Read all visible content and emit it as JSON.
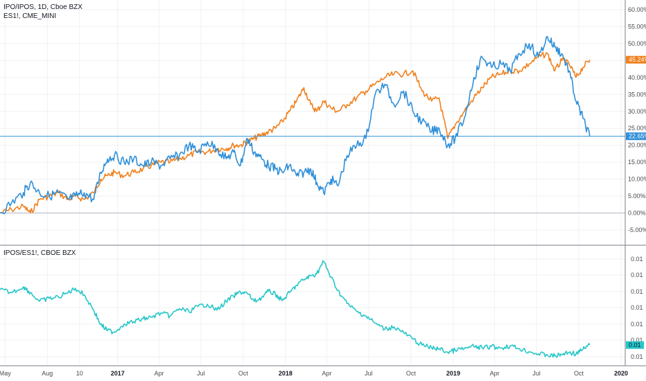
{
  "upper_pane": {
    "legend_main": "IPO/IPOS, 1D, Cboe BZX",
    "legend_compare": "ES1!, CME_MINI",
    "y_ticks": [
      "60.00%",
      "55.00%",
      "50.00%",
      "45.00%",
      "40.00%",
      "35.00%",
      "30.00%",
      "25.00%",
      "20.00%",
      "15.00%",
      "10.00%",
      "5.00%",
      "0.00%",
      "-5.00%"
    ],
    "last_es_label": "45.24%",
    "last_ipo_label": "22.65%"
  },
  "lower_pane": {
    "legend": "IPOS/ES1!, CBOE BZX",
    "y_ticks": [
      "0.01",
      "0.01",
      "0.01",
      "0.01",
      "0.01",
      "0.01",
      "0.01"
    ],
    "last_label": "0.01"
  },
  "x_axis": {
    "ticks": [
      {
        "label": "May",
        "bold": false
      },
      {
        "label": "Aug",
        "bold": false
      },
      {
        "label": "10",
        "bold": false
      },
      {
        "label": "2017",
        "bold": true
      },
      {
        "label": "Apr",
        "bold": false
      },
      {
        "label": "Jul",
        "bold": false
      },
      {
        "label": "Oct",
        "bold": false
      },
      {
        "label": "2018",
        "bold": true
      },
      {
        "label": "Apr",
        "bold": false
      },
      {
        "label": "Jul",
        "bold": false
      },
      {
        "label": "Oct",
        "bold": false
      },
      {
        "label": "2019",
        "bold": true
      },
      {
        "label": "Apr",
        "bold": false
      },
      {
        "label": "Jul",
        "bold": false
      },
      {
        "label": "Oct",
        "bold": false
      },
      {
        "label": "2020",
        "bold": true
      }
    ]
  },
  "colors": {
    "ipo": "#2f8fd8",
    "es": "#f0801d",
    "ratio": "#26c6c8",
    "grid": "#eef1f4",
    "zero_line": "#b2b5be",
    "background": "#ffffff"
  },
  "chart_data": [
    {
      "type": "line",
      "title": "IPO/IPOS, 1D, Cboe BZX",
      "y_unit": "%",
      "ylim": [
        -8,
        62
      ],
      "x_format": "YYYY-MM-DD",
      "xlim": [
        "2016-04-20",
        "2020-01-10"
      ],
      "grid": true,
      "series": [
        {
          "name": "IPO/IPOS, 1D, Cboe BZX",
          "color": "#2f8fd8",
          "x": [
            "2016-04-20",
            "2016-05-15",
            "2016-06-10",
            "2016-06-25",
            "2016-07-15",
            "2016-08-05",
            "2016-08-25",
            "2016-09-15",
            "2016-10-01",
            "2016-10-20",
            "2016-11-10",
            "2016-11-25",
            "2016-12-10",
            "2016-12-25",
            "2017-01-15",
            "2017-02-05",
            "2017-02-25",
            "2017-03-15",
            "2017-04-05",
            "2017-04-25",
            "2017-05-15",
            "2017-06-05",
            "2017-06-25",
            "2017-07-15",
            "2017-08-05",
            "2017-08-25",
            "2017-09-10",
            "2017-09-25",
            "2017-10-10",
            "2017-10-25",
            "2017-11-10",
            "2017-11-25",
            "2017-12-10",
            "2017-12-25",
            "2018-01-10",
            "2018-01-25",
            "2018-02-10",
            "2018-02-25",
            "2018-03-10",
            "2018-03-25",
            "2018-04-10",
            "2018-04-25",
            "2018-05-15",
            "2018-06-05",
            "2018-06-25",
            "2018-07-15",
            "2018-08-05",
            "2018-08-25",
            "2018-09-15",
            "2018-10-05",
            "2018-10-25",
            "2018-11-15",
            "2018-12-01",
            "2018-12-20",
            "2019-01-05",
            "2019-01-25",
            "2019-02-15",
            "2019-03-05",
            "2019-03-25",
            "2019-04-15",
            "2019-05-05",
            "2019-05-25",
            "2019-06-15",
            "2019-07-05",
            "2019-07-25",
            "2019-08-10",
            "2019-08-25",
            "2019-09-10",
            "2019-09-25",
            "2019-10-10",
            "2019-10-25"
          ],
          "y": [
            0,
            3,
            6,
            9,
            6,
            5,
            6,
            4,
            5,
            6,
            4,
            12,
            16,
            17,
            15,
            16,
            14,
            15,
            14,
            16,
            17,
            20,
            18,
            21,
            19,
            16,
            18,
            14,
            22,
            18,
            16,
            14,
            13,
            12,
            14,
            11,
            12,
            13,
            9,
            6,
            10,
            8,
            17,
            20,
            22,
            35,
            38,
            32,
            36,
            30,
            27,
            24,
            25,
            20,
            22,
            28,
            40,
            46,
            43,
            44,
            42,
            47,
            50,
            46,
            52,
            49,
            47,
            42,
            33,
            28,
            22.65
          ]
        },
        {
          "name": "ES1!, CME_MINI",
          "color": "#f0801d",
          "x": [
            "2016-04-20",
            "2016-05-15",
            "2016-06-10",
            "2016-06-25",
            "2016-07-15",
            "2016-08-05",
            "2016-08-25",
            "2016-09-15",
            "2016-10-01",
            "2016-10-20",
            "2016-11-10",
            "2016-11-25",
            "2016-12-10",
            "2016-12-25",
            "2017-01-15",
            "2017-02-05",
            "2017-02-25",
            "2017-03-15",
            "2017-04-05",
            "2017-04-25",
            "2017-05-15",
            "2017-06-05",
            "2017-06-25",
            "2017-07-15",
            "2017-08-05",
            "2017-08-25",
            "2017-09-10",
            "2017-09-25",
            "2017-10-10",
            "2017-10-25",
            "2017-11-10",
            "2017-11-25",
            "2017-12-10",
            "2017-12-25",
            "2018-01-10",
            "2018-01-25",
            "2018-02-10",
            "2018-02-25",
            "2018-03-10",
            "2018-03-25",
            "2018-04-10",
            "2018-04-25",
            "2018-05-15",
            "2018-06-05",
            "2018-06-25",
            "2018-07-15",
            "2018-08-05",
            "2018-08-25",
            "2018-09-15",
            "2018-10-05",
            "2018-10-25",
            "2018-11-15",
            "2018-12-01",
            "2018-12-20",
            "2019-01-05",
            "2019-01-25",
            "2019-02-15",
            "2019-03-05",
            "2019-03-25",
            "2019-04-15",
            "2019-05-05",
            "2019-05-25",
            "2019-06-15",
            "2019-07-05",
            "2019-07-25",
            "2019-08-10",
            "2019-08-25",
            "2019-09-10",
            "2019-09-25",
            "2019-10-10",
            "2019-10-25"
          ],
          "y": [
            0,
            1,
            2,
            0,
            4,
            5,
            6,
            4,
            5,
            4,
            6,
            10,
            11,
            12,
            11,
            12,
            13,
            14,
            15,
            15,
            16,
            17,
            18,
            18,
            19,
            19,
            20,
            20,
            21,
            22,
            23,
            24,
            25,
            27,
            30,
            33,
            37,
            32,
            30,
            33,
            31,
            30,
            32,
            34,
            36,
            38,
            40,
            41,
            41,
            42,
            36,
            33,
            34,
            22,
            26,
            30,
            34,
            37,
            40,
            41,
            42,
            42,
            44,
            46,
            47,
            42,
            45,
            44,
            40,
            43,
            45.24
          ]
        }
      ]
    },
    {
      "type": "line",
      "title": "IPOS/ES1!, CBOE BZX",
      "ytick_label": "0.01",
      "x_format": "YYYY-MM-DD",
      "xlim": [
        "2016-04-20",
        "2020-01-10"
      ],
      "grid": true,
      "series": [
        {
          "name": "IPOS/ES1!, CBOE BZX",
          "color": "#26c6c8",
          "x": [
            "2016-04-20",
            "2016-05-15",
            "2016-06-10",
            "2016-06-25",
            "2016-07-15",
            "2016-08-05",
            "2016-08-25",
            "2016-09-15",
            "2016-10-01",
            "2016-10-20",
            "2016-11-10",
            "2016-11-25",
            "2016-12-10",
            "2016-12-25",
            "2017-01-15",
            "2017-02-05",
            "2017-02-25",
            "2017-03-15",
            "2017-04-05",
            "2017-04-25",
            "2017-05-15",
            "2017-06-05",
            "2017-06-25",
            "2017-07-15",
            "2017-08-05",
            "2017-08-25",
            "2017-09-10",
            "2017-09-25",
            "2017-10-10",
            "2017-10-25",
            "2017-11-10",
            "2017-11-25",
            "2017-12-10",
            "2017-12-25",
            "2018-01-10",
            "2018-01-25",
            "2018-02-10",
            "2018-02-25",
            "2018-03-10",
            "2018-03-25",
            "2018-04-10",
            "2018-04-25",
            "2018-05-15",
            "2018-06-05",
            "2018-06-25",
            "2018-07-15",
            "2018-08-05",
            "2018-08-25",
            "2018-09-15",
            "2018-10-05",
            "2018-10-25",
            "2018-11-15",
            "2018-12-01",
            "2018-12-20",
            "2019-01-05",
            "2019-01-25",
            "2019-02-15",
            "2019-03-05",
            "2019-03-25",
            "2019-04-15",
            "2019-05-05",
            "2019-05-25",
            "2019-06-15",
            "2019-07-05",
            "2019-07-25",
            "2019-08-10",
            "2019-08-25",
            "2019-09-10",
            "2019-09-25",
            "2019-10-10",
            "2019-10-25"
          ],
          "y": [
            0.01112,
            0.01108,
            0.01116,
            0.01108,
            0.01096,
            0.011,
            0.01102,
            0.01108,
            0.01114,
            0.01105,
            0.01084,
            0.01064,
            0.01056,
            0.01054,
            0.01065,
            0.01068,
            0.01072,
            0.01074,
            0.0108,
            0.01076,
            0.01086,
            0.01082,
            0.01089,
            0.01092,
            0.01084,
            0.01096,
            0.01103,
            0.01109,
            0.01107,
            0.01096,
            0.01101,
            0.0111,
            0.01106,
            0.01097,
            0.01108,
            0.01118,
            0.01126,
            0.01131,
            0.01134,
            0.01151,
            0.01129,
            0.01111,
            0.01093,
            0.01082,
            0.01076,
            0.01066,
            0.01058,
            0.01061,
            0.01053,
            0.01044,
            0.01036,
            0.01032,
            0.01031,
            0.01026,
            0.01029,
            0.01031,
            0.01034,
            0.01032,
            0.01034,
            0.01032,
            0.01035,
            0.01031,
            0.01027,
            0.01024,
            0.01022,
            0.01021,
            0.01023,
            0.01026,
            0.01024,
            0.0103,
            0.01036
          ]
        }
      ]
    }
  ]
}
